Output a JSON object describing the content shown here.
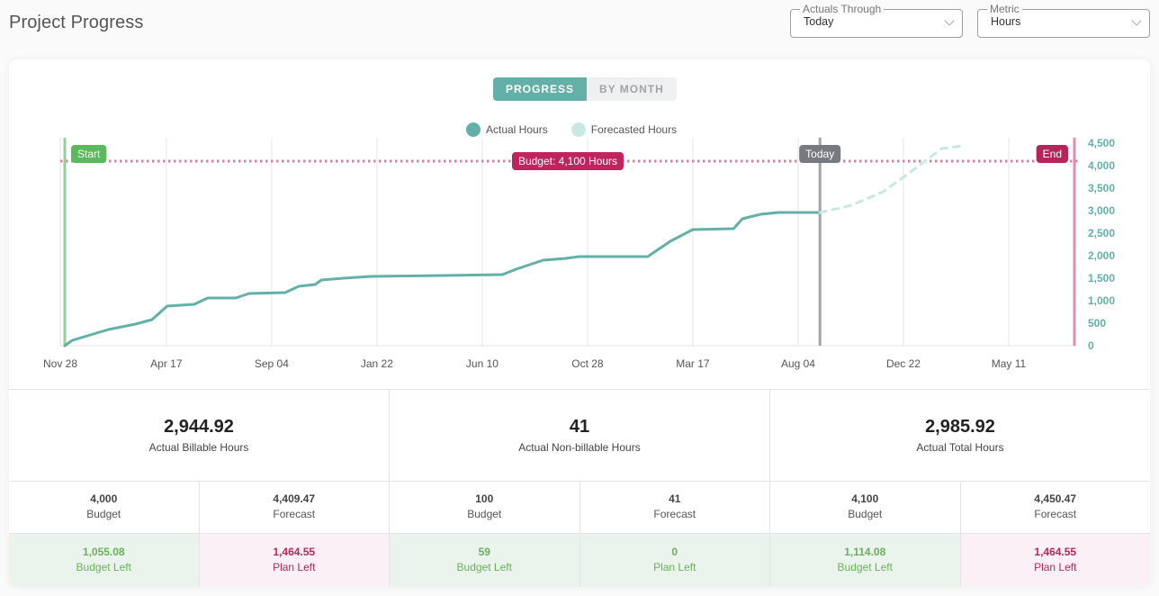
{
  "page": {
    "title": "Project Progress"
  },
  "filters": {
    "actuals_through": {
      "label": "Actuals Through",
      "value": "Today"
    },
    "metric": {
      "label": "Metric",
      "value": "Hours"
    }
  },
  "tabs": [
    {
      "label": "PROGRESS",
      "active": true
    },
    {
      "label": "BY MONTH",
      "active": false
    }
  ],
  "colors": {
    "actual": "#63b0a8",
    "forecast": "#c8e8e4",
    "budget": "#c0245c",
    "budget_line": "#d97fa4",
    "start": "#5cb85c",
    "start_line": "#8fd19a",
    "today": "#777a80",
    "today_line": "#a3a3a3",
    "end": "#b8245a",
    "end_line": "#df8fb1",
    "grid": "#e6e6e6"
  },
  "chart_data": {
    "type": "line",
    "title": "",
    "xlabel": "",
    "ylabel": "",
    "x_unit": "days since Nov 28",
    "xlim": [
      -2,
      1358
    ],
    "ylim": [
      0,
      4500
    ],
    "y_axis_side": "right",
    "grid": "vertical",
    "x_ticks": [
      {
        "day": 0,
        "label": "Nov 28"
      },
      {
        "day": 141,
        "label": "Apr 17"
      },
      {
        "day": 281,
        "label": "Sep 04"
      },
      {
        "day": 421,
        "label": "Jan 22"
      },
      {
        "day": 561,
        "label": "Jun 10"
      },
      {
        "day": 701,
        "label": "Oct 28"
      },
      {
        "day": 841,
        "label": "Mar 17"
      },
      {
        "day": 981,
        "label": "Aug 04"
      },
      {
        "day": 1121,
        "label": "Dec 22"
      },
      {
        "day": 1261,
        "label": "May 11"
      }
    ],
    "y_ticks": [
      {
        "value": 0,
        "label": "0"
      },
      {
        "value": 500,
        "label": "500"
      },
      {
        "value": 1000,
        "label": "1,000"
      },
      {
        "value": 1500,
        "label": "1,500"
      },
      {
        "value": 2000,
        "label": "2,000"
      },
      {
        "value": 2500,
        "label": "2,500"
      },
      {
        "value": 3000,
        "label": "3,000"
      },
      {
        "value": 3500,
        "label": "3,500"
      },
      {
        "value": 4000,
        "label": "4,000"
      },
      {
        "value": 4500,
        "label": "4,500"
      }
    ],
    "legend": {
      "placement": "top-center",
      "entries": [
        "Actual Hours",
        "Forecasted Hours"
      ]
    },
    "series": [
      {
        "name": "Actual Hours",
        "style": "solid",
        "points": [
          [
            6,
            0
          ],
          [
            16,
            120
          ],
          [
            28,
            180
          ],
          [
            64,
            360
          ],
          [
            100,
            480
          ],
          [
            122,
            580
          ],
          [
            134,
            760
          ],
          [
            142,
            880
          ],
          [
            160,
            900
          ],
          [
            178,
            920
          ],
          [
            196,
            1060
          ],
          [
            233,
            1060
          ],
          [
            251,
            1160
          ],
          [
            299,
            1180
          ],
          [
            317,
            1320
          ],
          [
            339,
            1360
          ],
          [
            347,
            1460
          ],
          [
            377,
            1500
          ],
          [
            413,
            1540
          ],
          [
            510,
            1560
          ],
          [
            588,
            1580
          ],
          [
            606,
            1700
          ],
          [
            642,
            1900
          ],
          [
            672,
            1940
          ],
          [
            690,
            1980
          ],
          [
            781,
            1980
          ],
          [
            811,
            2320
          ],
          [
            841,
            2580
          ],
          [
            895,
            2600
          ],
          [
            907,
            2820
          ],
          [
            931,
            2920
          ],
          [
            955,
            2960
          ],
          [
            1010,
            2960
          ]
        ]
      },
      {
        "name": "Forecasted Hours",
        "style": "dashed",
        "points": [
          [
            1010,
            2960
          ],
          [
            1052,
            3120
          ],
          [
            1094,
            3420
          ],
          [
            1124,
            3780
          ],
          [
            1148,
            4080
          ],
          [
            1172,
            4380
          ],
          [
            1200,
            4440
          ]
        ]
      }
    ],
    "annotations": [
      {
        "type": "hline",
        "value": 4100,
        "label": "Budget: 4,100 Hours",
        "style": "dotted"
      },
      {
        "type": "vline",
        "day": 6,
        "label": "Start"
      },
      {
        "type": "vline",
        "day": 1010,
        "label": "Today"
      },
      {
        "type": "vline",
        "day": 1358,
        "label": "End"
      }
    ]
  },
  "summary": {
    "billable": {
      "value": "2,944.92",
      "label": "Actual Billable Hours",
      "budget": {
        "value": "4,000",
        "label": "Budget"
      },
      "forecast": {
        "value": "4,409.47",
        "label": "Forecast"
      },
      "budget_left": {
        "value": "1,055.08",
        "label": "Budget Left",
        "status": "good"
      },
      "plan_left": {
        "value": "1,464.55",
        "label": "Plan Left",
        "status": "bad"
      }
    },
    "nonbillable": {
      "value": "41",
      "label": "Actual Non-billable Hours",
      "budget": {
        "value": "100",
        "label": "Budget"
      },
      "forecast": {
        "value": "41",
        "label": "Forecast"
      },
      "budget_left": {
        "value": "59",
        "label": "Budget Left",
        "status": "good"
      },
      "plan_left": {
        "value": "0",
        "label": "Plan Left",
        "status": "good"
      }
    },
    "total": {
      "value": "2,985.92",
      "label": "Actual Total Hours",
      "budget": {
        "value": "4,100",
        "label": "Budget"
      },
      "forecast": {
        "value": "4,450.47",
        "label": "Forecast"
      },
      "budget_left": {
        "value": "1,114.08",
        "label": "Budget Left",
        "status": "good"
      },
      "plan_left": {
        "value": "1,464.55",
        "label": "Plan Left",
        "status": "bad"
      }
    }
  }
}
